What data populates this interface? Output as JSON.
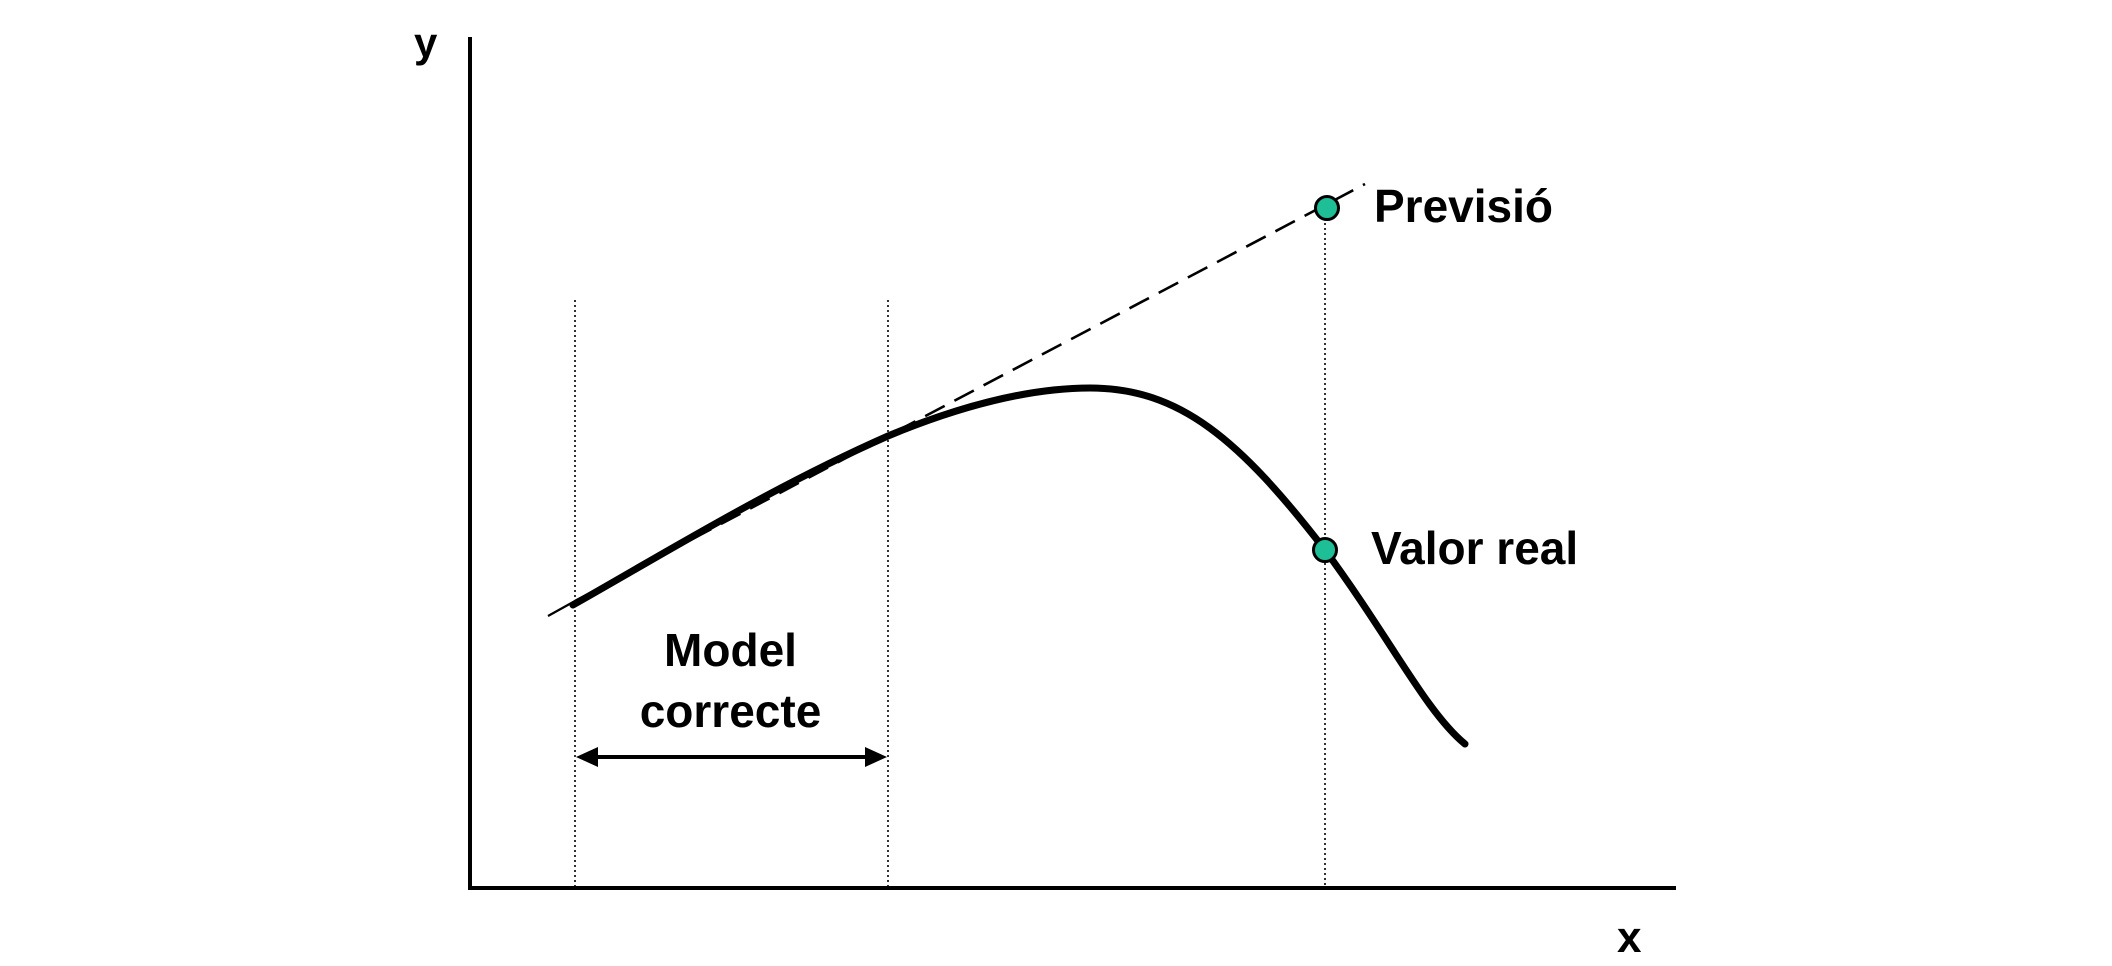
{
  "axes": {
    "x_label": "x",
    "y_label": "y"
  },
  "annotations": {
    "forecast_label": "Previsió",
    "real_value_label": "Valor real",
    "valid_model_label": "Model correcte"
  },
  "colors": {
    "marker_fill": "#1ebf96",
    "line": "#000000",
    "background": "#ffffff"
  }
}
